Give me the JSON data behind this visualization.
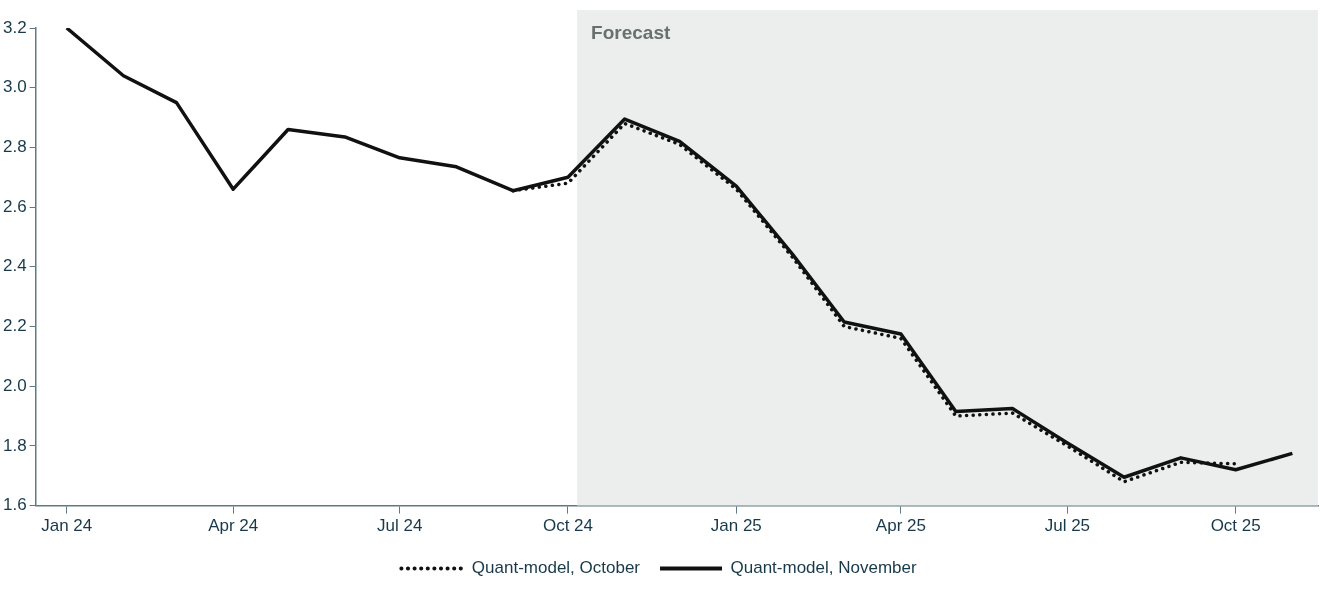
{
  "chart_data": {
    "type": "line",
    "x": [
      "2024-01",
      "2024-02",
      "2024-03",
      "2024-04",
      "2024-05",
      "2024-06",
      "2024-07",
      "2024-08",
      "2024-09",
      "2024-10",
      "2024-11",
      "2024-12",
      "2025-01",
      "2025-02",
      "2025-03",
      "2025-04",
      "2025-05",
      "2025-06",
      "2025-07",
      "2025-08",
      "2025-09",
      "2025-10",
      "2025-11"
    ],
    "series": [
      {
        "name": "Quant-model, October",
        "color": "#111111",
        "line_style": "dotted",
        "values": [
          null,
          null,
          null,
          null,
          null,
          null,
          null,
          null,
          2.655,
          2.68,
          2.88,
          2.81,
          2.66,
          2.43,
          2.2,
          2.16,
          1.9,
          1.91,
          1.8,
          1.68,
          1.745,
          1.74,
          null
        ]
      },
      {
        "name": "Quant-model, November",
        "color": "#111111",
        "line_style": "solid",
        "values": [
          3.2,
          3.04,
          2.95,
          2.66,
          2.86,
          2.835,
          2.765,
          2.735,
          2.655,
          2.7,
          2.895,
          2.82,
          2.67,
          2.44,
          2.215,
          2.175,
          1.915,
          1.925,
          1.81,
          1.695,
          1.76,
          1.72,
          1.775
        ]
      }
    ],
    "xlim": [
      "2023-12-15",
      "2025-11-15"
    ],
    "xticks": [
      {
        "value": "2024-01",
        "label": "Jan 24"
      },
      {
        "value": "2024-04",
        "label": "Apr 24"
      },
      {
        "value": "2024-07",
        "label": "Jul 24"
      },
      {
        "value": "2024-10",
        "label": "Oct 24"
      },
      {
        "value": "2025-01",
        "label": "Jan 25"
      },
      {
        "value": "2025-04",
        "label": "Apr 25"
      },
      {
        "value": "2025-07",
        "label": "Jul 25"
      },
      {
        "value": "2025-10",
        "label": "Oct 25"
      }
    ],
    "ylim": [
      1.6,
      3.2
    ],
    "yticks": [
      1.6,
      1.8,
      {
        "value": 2,
        "label": "2.0"
      },
      2.2,
      2.4,
      2.6,
      2.8,
      {
        "value": 3,
        "label": "3.0"
      },
      3.2
    ],
    "bands": [
      {
        "axis": "x",
        "from": "2024-10-06",
        "to": "2025-11-15",
        "label": "Forecast",
        "color": "#eceeed"
      }
    ],
    "grid": false,
    "legend": "bottom",
    "marker": "none"
  }
}
